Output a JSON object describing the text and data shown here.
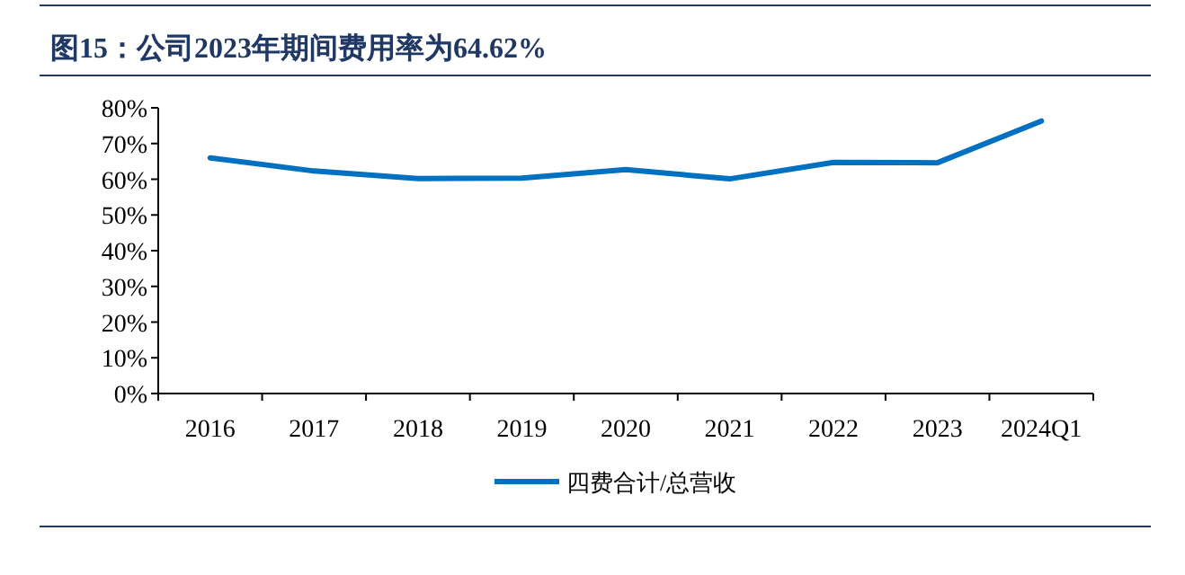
{
  "chart_data": {
    "type": "line",
    "title": "图15：公司2023年期间费用率为64.62%",
    "categories": [
      "2016",
      "2017",
      "2018",
      "2019",
      "2020",
      "2021",
      "2022",
      "2023",
      "2024Q1"
    ],
    "series": [
      {
        "name": "四费合计/总营收",
        "color": "#0070c0",
        "values": [
          66,
          62.3,
          60.2,
          60.3,
          62.7,
          60.1,
          64.7,
          64.62,
          76.3
        ]
      }
    ],
    "ylim": [
      0,
      80
    ],
    "yticks": [
      {
        "value": 0,
        "label": "0%"
      },
      {
        "value": 10,
        "label": "10%"
      },
      {
        "value": 20,
        "label": "20%"
      },
      {
        "value": 30,
        "label": "30%"
      },
      {
        "value": 40,
        "label": "40%"
      },
      {
        "value": 50,
        "label": "50%"
      },
      {
        "value": 60,
        "label": "60%"
      },
      {
        "value": 70,
        "label": "70%"
      },
      {
        "value": 80,
        "label": "80%"
      }
    ],
    "legend": "bottom",
    "grid": false,
    "marker": "none",
    "line_style": "solid"
  }
}
